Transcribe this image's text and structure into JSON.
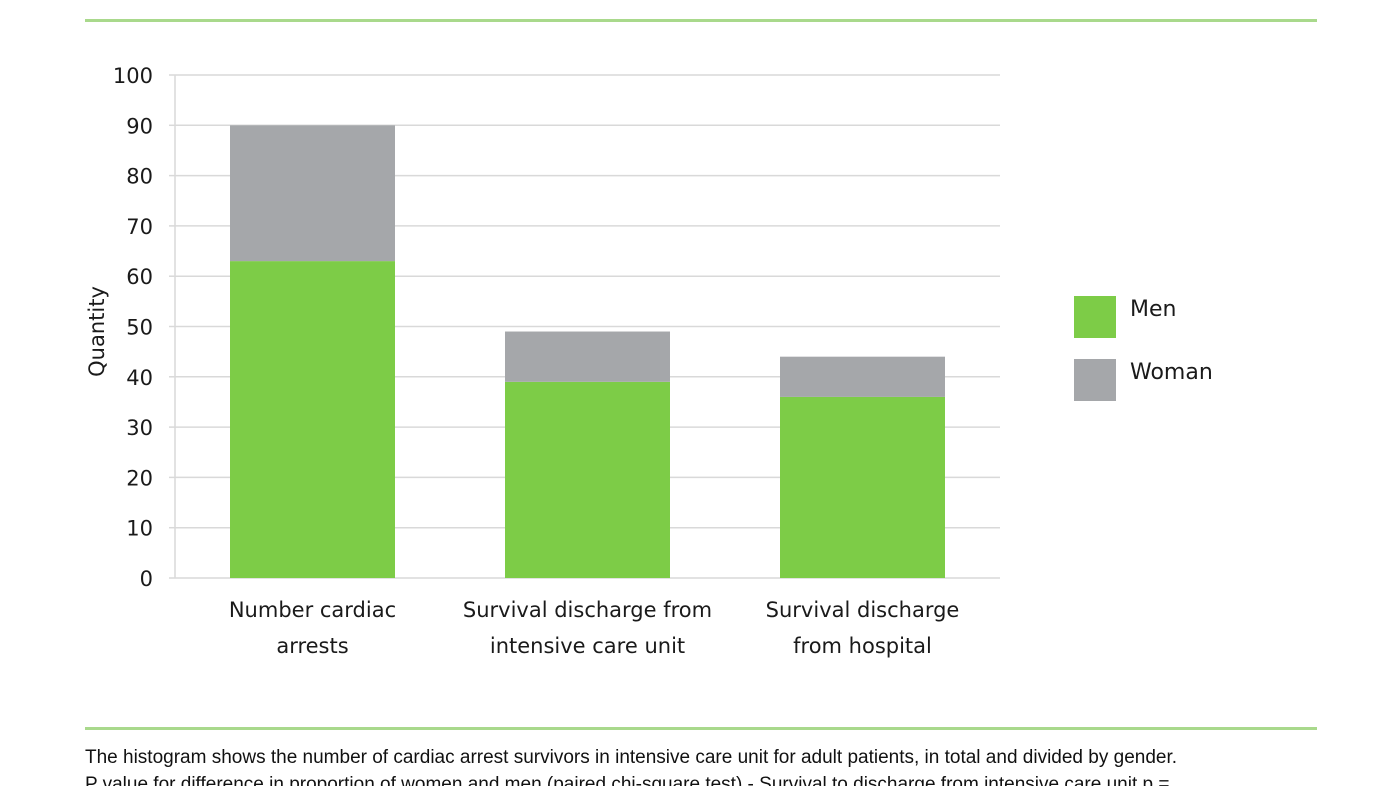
{
  "chart_data": {
    "type": "bar",
    "stacked": true,
    "categories": [
      [
        "Number cardiac",
        "arrests"
      ],
      [
        "Survival discharge from",
        "intensive care unit"
      ],
      [
        "Survival discharge",
        "from hospital"
      ]
    ],
    "series": [
      {
        "name": "Men",
        "color": "#7dcc47",
        "values": [
          63,
          39,
          36
        ]
      },
      {
        "name": "Woman",
        "color": "#a5a7aa",
        "values": [
          27,
          10,
          8
        ]
      }
    ],
    "ylabel": "Quantity",
    "ylim": [
      0,
      100
    ],
    "yticks": [
      0,
      10,
      20,
      30,
      40,
      50,
      60,
      70,
      80,
      90,
      100
    ],
    "grid": true,
    "legend_position": "right"
  },
  "caption": {
    "line1": "The histogram shows the number of cardiac arrest survivors in intensive care unit for adult patients, in total and divided by gender.",
    "line2": "P value for difference in proportion of women and men (paired chi-square test) - Survival to discharge from intensive care unit p ="
  },
  "colors": {
    "rule": "#a9d98c",
    "grid": "#d9d9d9"
  }
}
